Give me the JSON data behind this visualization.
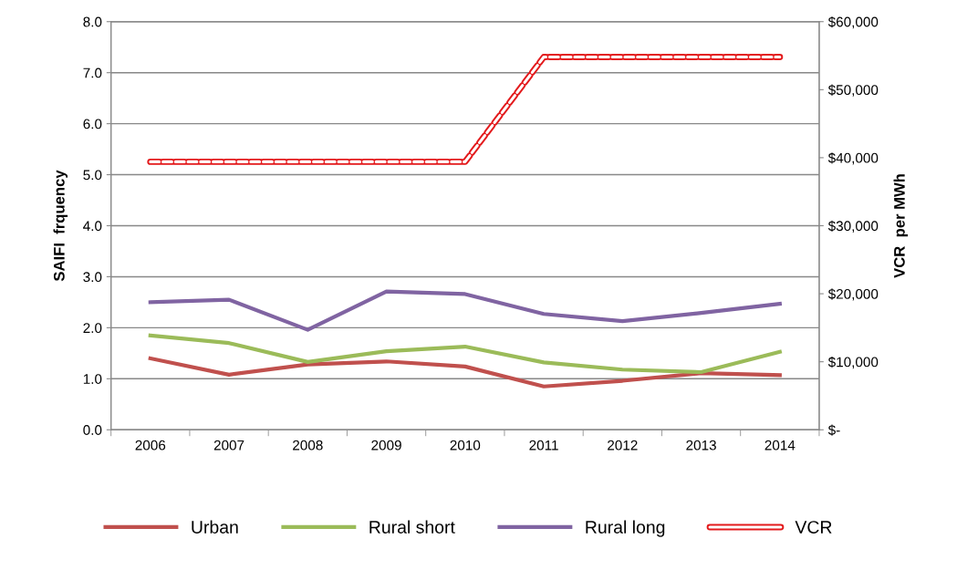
{
  "chart_data": {
    "type": "line",
    "ylabel": "SAIFI  frquency",
    "y2label": "VCR  per MWh",
    "categories": [
      "2006",
      "2007",
      "2008",
      "2009",
      "2010",
      "2011",
      "2012",
      "2013",
      "2014"
    ],
    "series": [
      {
        "name": "Urban",
        "color": "#c0504d",
        "values": [
          1.4,
          1.08,
          1.28,
          1.34,
          1.24,
          0.85,
          0.96,
          1.11,
          1.07
        ]
      },
      {
        "name": "Rural short",
        "color": "#9bbb59",
        "values": [
          1.85,
          1.7,
          1.33,
          1.54,
          1.63,
          1.32,
          1.18,
          1.13,
          1.53
        ]
      },
      {
        "name": "Rural long",
        "color": "#8064a2",
        "values": [
          2.5,
          2.55,
          1.96,
          2.71,
          2.66,
          2.27,
          2.13,
          2.29,
          2.47
        ]
      },
      {
        "name": "VCR",
        "color": "#e31a1c",
        "axis": "y2",
        "line_style": "dashed",
        "values": [
          39400,
          39400,
          39400,
          39400,
          39400,
          54800,
          54800,
          54800,
          54800
        ]
      }
    ],
    "ylim": [
      0,
      8
    ],
    "yticks": [
      {
        "value": 0,
        "label": "0.0"
      },
      {
        "value": 1,
        "label": "1.0"
      },
      {
        "value": 2,
        "label": "2.0"
      },
      {
        "value": 3,
        "label": "3.0"
      },
      {
        "value": 4,
        "label": "4.0"
      },
      {
        "value": 5,
        "label": "5.0"
      },
      {
        "value": 6,
        "label": "6.0"
      },
      {
        "value": 7,
        "label": "7.0"
      },
      {
        "value": 8,
        "label": "8.0"
      }
    ],
    "y2lim": [
      0,
      60000
    ],
    "y2ticks": [
      {
        "value": 0,
        "label": "$-"
      },
      {
        "value": 10000,
        "label": "$10,000"
      },
      {
        "value": 20000,
        "label": "$20,000"
      },
      {
        "value": 30000,
        "label": "$30,000"
      },
      {
        "value": 40000,
        "label": "$40,000"
      },
      {
        "value": 50000,
        "label": "$50,000"
      },
      {
        "value": 60000,
        "label": "$60,000"
      }
    ],
    "grid": "y",
    "legend": "bottom",
    "marker": "none"
  }
}
